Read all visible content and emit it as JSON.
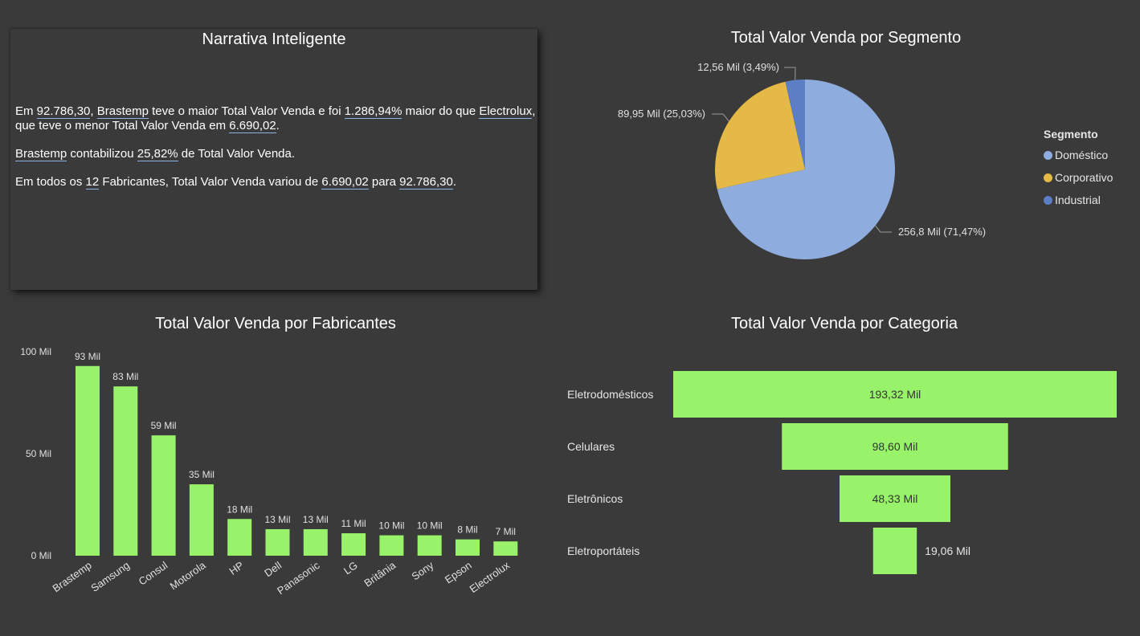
{
  "narrative": {
    "title": "Narrativa Inteligente",
    "p1": {
      "t1": "Em ",
      "v1": "92.786,30",
      "t2": ", ",
      "v2": "Brastemp",
      "t3": " teve o maior Total Valor Venda e foi ",
      "v3": "1.286,94%",
      "t4": " maior do que ",
      "v4": "Electrolux",
      "t5": ", que teve o menor Total Valor Venda em ",
      "v5": "6.690,02",
      "t6": "."
    },
    "p2": {
      "v1": "Brastemp",
      "t1": " contabilizou ",
      "v2": "25,82%",
      "t2": " de Total Valor Venda."
    },
    "p3": {
      "t1": "Em todos os ",
      "v1": "12",
      "t2": " Fabricantes, Total Valor Venda variou de ",
      "v2": "6.690,02",
      "t3": " para ",
      "v3": "92.786,30",
      "t4": "."
    }
  },
  "colors": {
    "background": "#3a3a3a",
    "bar": "#99f36a",
    "domestico": "#8eacde",
    "corporativo": "#e5b945",
    "industrial": "#5b7ec4"
  },
  "chart_data": [
    {
      "type": "pie",
      "title": "Total Valor Venda por Segmento",
      "legend_title": "Segmento",
      "legend_position": "right",
      "slices": [
        {
          "name": "Doméstico",
          "value": 256.8,
          "label": "256,8 Mil (71,47%)",
          "color": "#8eacde"
        },
        {
          "name": "Corporativo",
          "value": 89.95,
          "label": "89,95 Mil (25,03%)",
          "color": "#e5b945"
        },
        {
          "name": "Industrial",
          "value": 12.56,
          "label": "12,56 Mil (3,49%)",
          "color": "#5b7ec4"
        }
      ]
    },
    {
      "type": "bar",
      "title": "Total Valor Venda por Fabricantes",
      "categories": [
        "Brastemp",
        "Samsung",
        "Consul",
        "Motorola",
        "HP",
        "Dell",
        "Panasonic",
        "LG",
        "Britânia",
        "Sony",
        "Epson",
        "Electrolux"
      ],
      "values": [
        93,
        83,
        59,
        35,
        18,
        13,
        13,
        11,
        10,
        10,
        8,
        7
      ],
      "data_labels": [
        "93 Mil",
        "83 Mil",
        "59 Mil",
        "35 Mil",
        "18 Mil",
        "13 Mil",
        "13 Mil",
        "11 Mil",
        "10 Mil",
        "10 Mil",
        "8 Mil",
        "7 Mil"
      ],
      "yticks": [
        0,
        50,
        100
      ],
      "ytick_labels": [
        "0 Mil",
        "50 Mil",
        "100 Mil"
      ],
      "ylim": [
        0,
        100
      ],
      "grid": false
    },
    {
      "type": "funnel",
      "title": "Total Valor Venda por Categoria",
      "categories": [
        "Eletrodomésticos",
        "Celulares",
        "Eletrônicos",
        "Eletroportáteis"
      ],
      "values": [
        193.32,
        98.6,
        48.33,
        19.06
      ],
      "data_labels": [
        "193,32 Mil",
        "98,60 Mil",
        "48,33 Mil",
        "19,06 Mil"
      ]
    }
  ]
}
